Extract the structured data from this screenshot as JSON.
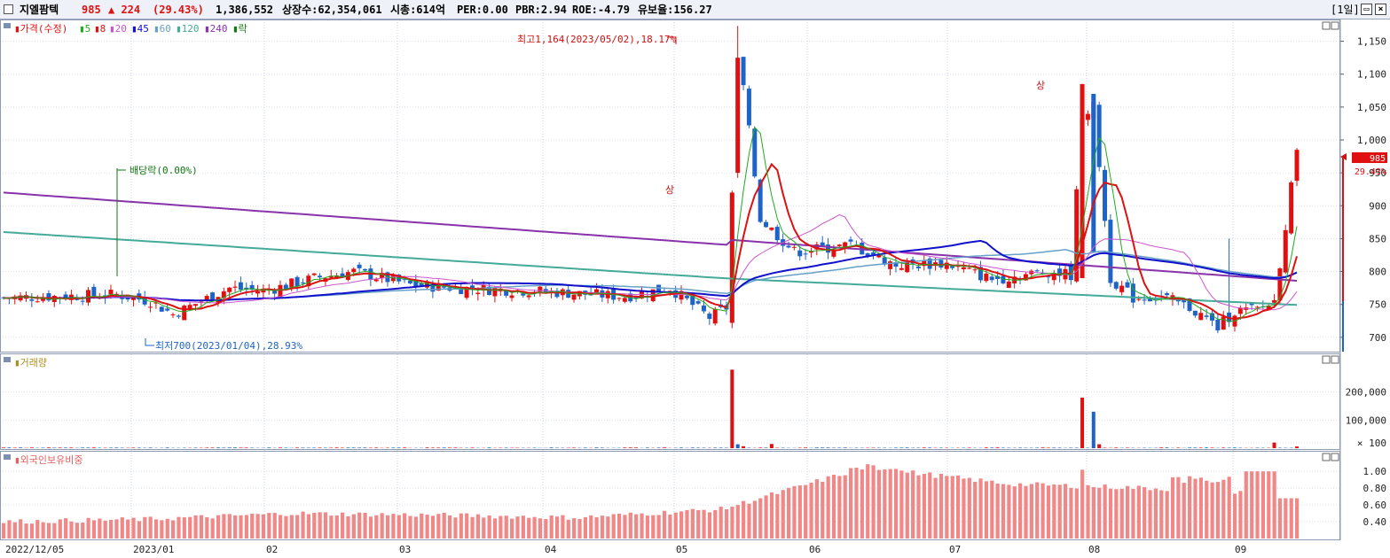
{
  "header": {
    "stock_name": "지엘팜텍",
    "price": "985",
    "change": "▲ 224",
    "change_pct": "(29.43%)",
    "volume": "1,386,552",
    "listed": "상장수:62,354,061",
    "mktcap": "시총:614억",
    "per": "PER:0.00",
    "pbr": "PBR:2.94",
    "roe": "ROE:-4.79",
    "float": "유보율:156.27",
    "period": "[1일]"
  },
  "legend": {
    "price": "가격(수정)",
    "ma5": "5",
    "ma8": "8",
    "ma20": "20",
    "ma45": "45",
    "ma60": "60",
    "ma120": "120",
    "ma240": "240",
    "rak": "락",
    "volume": "거래량",
    "foreign": "외국인보유비중"
  },
  "annotations": {
    "high": "최고1,164(2023/05/02),18.17%",
    "low": "최저700(2023/01/04),28.93%",
    "dividend": "배당락(0.00%)",
    "upper_limit_1": "상",
    "upper_limit_2": "상",
    "current_price": "985",
    "current_pct": "29.43%"
  },
  "colors": {
    "up": "#e01010",
    "down": "#1e64c8",
    "ma5": "#22aa22",
    "ma8": "#dd1111",
    "ma20": "#cc55cc",
    "ma45": "#1111cc",
    "ma60": "#66a0c8",
    "ma120": "#44aa99",
    "ma240": "#8833aa",
    "foreign": "#f08888"
  },
  "chart_data": [
    {
      "type": "line",
      "title": "",
      "yticks": [
        700,
        750,
        800,
        850,
        900,
        950,
        1000,
        1050,
        1100,
        1150
      ],
      "ytick_labels": [
        "700",
        "750",
        "800",
        "850",
        "900",
        "950",
        "1,000",
        "1,050",
        "1,100",
        "1,150"
      ],
      "ylim": [
        685,
        1175
      ],
      "x_labels": [
        "2022/12/05",
        "2023/01",
        "02",
        "03",
        "04",
        "05",
        "06",
        "07",
        "08",
        "09"
      ],
      "last_price": 985,
      "high": 1164,
      "low": 700,
      "ma240_approx": [
        {
          "x": "2022/12/05",
          "y": 920
        },
        {
          "x": "2023/01",
          "y": 905
        },
        {
          "x": "02",
          "y": 890
        },
        {
          "x": "03",
          "y": 878
        },
        {
          "x": "04",
          "y": 868
        },
        {
          "x": "05",
          "y": 838
        },
        {
          "x": "06",
          "y": 825
        },
        {
          "x": "07",
          "y": 808
        },
        {
          "x": "08",
          "y": 797
        },
        {
          "x": "09",
          "y": 780
        }
      ]
    },
    {
      "type": "bar",
      "title": "거래량",
      "yticks": [
        100,
        100000,
        200000
      ],
      "ytick_labels": [
        "× 100",
        "100,000",
        "200,000"
      ],
      "peak_values": [
        {
          "x": "05",
          "y": 280000
        },
        {
          "x": "07",
          "y": 180000
        }
      ]
    },
    {
      "type": "bar",
      "title": "외국인보유비중",
      "yticks": [
        0.4,
        0.6,
        0.8,
        1.0
      ],
      "ytick_labels": [
        "0.40",
        "0.60",
        "0.80",
        "1.00"
      ],
      "ylim": [
        0.2,
        1.15
      ],
      "monthly_levels": [
        {
          "x": "2022/12/05",
          "y": 0.4
        },
        {
          "x": "2023/01",
          "y": 0.43
        },
        {
          "x": "02",
          "y": 0.5
        },
        {
          "x": "03",
          "y": 0.48
        },
        {
          "x": "04",
          "y": 0.45
        },
        {
          "x": "05",
          "y": 0.55
        },
        {
          "x": "06",
          "y": 1.05
        },
        {
          "x": "07",
          "y": 0.85
        },
        {
          "x": "08",
          "y": 0.8
        },
        {
          "x": "09",
          "y": 0.7
        }
      ]
    }
  ]
}
